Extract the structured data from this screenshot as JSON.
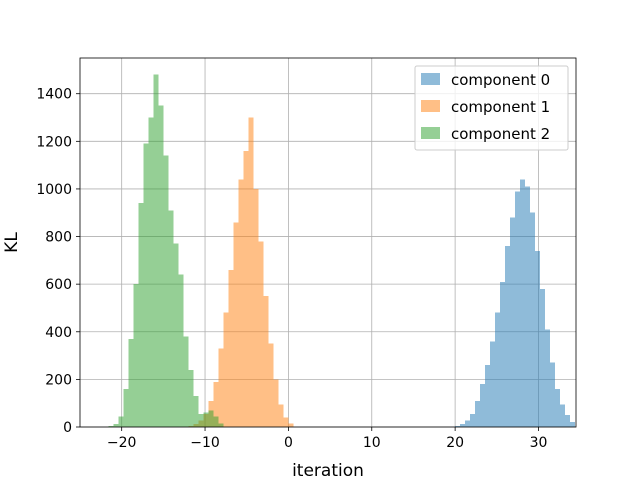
{
  "chart_data": {
    "type": "histogram",
    "title": "",
    "xlabel": "iteration",
    "ylabel": "KL",
    "xlim": [
      -25,
      34.5
    ],
    "ylim": [
      0,
      1550
    ],
    "xticks": [
      -20,
      -10,
      0,
      10,
      20,
      30
    ],
    "yticks": [
      0,
      200,
      400,
      600,
      800,
      1000,
      1200,
      1400
    ],
    "grid": true,
    "legend_position": "top-right",
    "series": [
      {
        "name": "component 0",
        "color": "#1f77b4",
        "opacity": 0.5,
        "bin_start": 20.0,
        "bin_width": 0.6,
        "counts": [
          4,
          12,
          28,
          55,
          110,
          180,
          260,
          360,
          480,
          610,
          760,
          880,
          990,
          1040,
          1010,
          900,
          740,
          580,
          410,
          270,
          160,
          95,
          50,
          20
        ]
      },
      {
        "name": "component 1",
        "color": "#ff7f0e",
        "opacity": 0.5,
        "bin_start": -12.0,
        "bin_width": 0.6,
        "counts": [
          5,
          12,
          28,
          55,
          110,
          190,
          330,
          480,
          660,
          860,
          1040,
          1160,
          1300,
          1000,
          780,
          550,
          350,
          200,
          95,
          40,
          15
        ]
      },
      {
        "name": "component 2",
        "color": "#2ca02c",
        "opacity": 0.5,
        "bin_start": -21.6,
        "bin_width": 0.6,
        "counts": [
          5,
          12,
          45,
          160,
          370,
          600,
          940,
          1190,
          1300,
          1480,
          1350,
          1140,
          910,
          770,
          640,
          380,
          240,
          130,
          55,
          60,
          70,
          45,
          15
        ]
      }
    ]
  }
}
